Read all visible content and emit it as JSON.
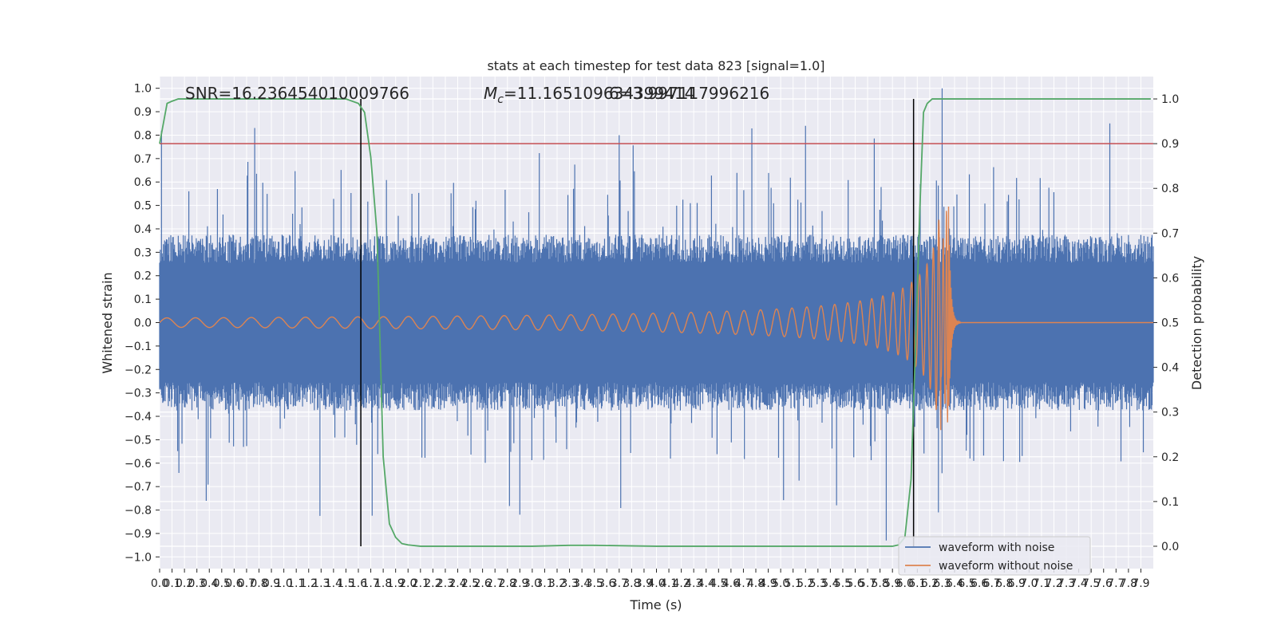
{
  "chart_data": {
    "type": "line",
    "title": "stats at each timestep for test data 823 [signal=1.0]",
    "xlabel": "Time (s)",
    "ylabel_left": "Whitened strain",
    "ylabel_right": "Detection probability",
    "xlim": [
      0.0,
      8.0
    ],
    "ylim_left": [
      -1.05,
      1.05
    ],
    "ylim_right": [
      -0.05,
      1.05
    ],
    "x_ticks": [
      "0.0",
      "0.1",
      "0.2",
      "0.3",
      "0.4",
      "0.5",
      "0.6",
      "0.7",
      "0.8",
      "0.9",
      "1.0",
      "1.1",
      "1.2",
      "1.3",
      "1.4",
      "1.5",
      "1.6",
      "1.7",
      "1.8",
      "1.9",
      "2.0",
      "2.1",
      "2.2",
      "2.3",
      "2.4",
      "2.5",
      "2.6",
      "2.7",
      "2.8",
      "2.9",
      "3.0",
      "3.1",
      "3.2",
      "3.3",
      "3.4",
      "3.5",
      "3.6",
      "3.7",
      "3.8",
      "3.9",
      "4.0",
      "4.1",
      "4.2",
      "4.3",
      "4.4",
      "4.5",
      "4.6",
      "4.7",
      "4.8",
      "4.9",
      "5.0",
      "5.1",
      "5.2",
      "5.3",
      "5.4",
      "5.5",
      "5.6",
      "5.7",
      "5.8",
      "5.9",
      "6.0",
      "6.1",
      "6.2",
      "6.3",
      "6.4",
      "6.5",
      "6.6",
      "6.7",
      "6.8",
      "6.9",
      "7.0",
      "7.1",
      "7.2",
      "7.3",
      "7.4",
      "7.5",
      "7.6",
      "7.7",
      "7.8",
      "7.9"
    ],
    "y_ticks_left": [
      "1.0",
      "0.9",
      "0.8",
      "0.7",
      "0.6",
      "0.5",
      "0.4",
      "0.3",
      "0.2",
      "0.1",
      "0.0",
      "−0.1",
      "−0.2",
      "−0.3",
      "−0.4",
      "−0.5",
      "−0.6",
      "−0.7",
      "−0.8",
      "−0.9",
      "−1.0"
    ],
    "y_ticks_right": [
      "1.0",
      "0.9",
      "0.8",
      "0.7",
      "0.6",
      "0.5",
      "0.4",
      "0.3",
      "0.2",
      "0.1",
      "0.0"
    ],
    "annotations": {
      "snr": "SNR=16.236454010009766",
      "mc_symbol": "M",
      "mc_sub": "c",
      "mc_value": "=11.165109634399414",
      "overlap": "6=3.997117996216"
    },
    "threshold": {
      "value": 0.9,
      "color": "#c44e52"
    },
    "detection_bounds": [
      1.62,
      6.07
    ],
    "series": [
      {
        "name": "waveform with noise",
        "color": "#4c72b0",
        "axis": "left",
        "envelope": {
          "typical": 0.3,
          "peak_max": 1.0,
          "trough_min": -0.93
        }
      },
      {
        "name": "waveform without noise",
        "color": "#dd8452",
        "axis": "left",
        "chirp": {
          "start_amp": 0.02,
          "merger_time": 6.35,
          "peak_amp": 0.55,
          "trough_amp": -0.45,
          "ringdown_end": 6.45
        }
      },
      {
        "name": "",
        "color": "#55a868",
        "axis": "right",
        "x": [
          0.0,
          0.06,
          0.1,
          0.15,
          0.2,
          1.4,
          1.5,
          1.6,
          1.65,
          1.7,
          1.75,
          1.8,
          1.85,
          1.9,
          1.95,
          2.0,
          2.1,
          2.2,
          2.5,
          3.0,
          3.3,
          3.5,
          4.0,
          5.5,
          5.9,
          5.95,
          6.0,
          6.05,
          6.08,
          6.12,
          6.15,
          6.18,
          6.22,
          6.3,
          7.0,
          7.98
        ],
        "y": [
          0.9,
          0.99,
          0.995,
          1.0,
          1.0,
          1.0,
          1.0,
          0.99,
          0.97,
          0.87,
          0.7,
          0.2,
          0.05,
          0.02,
          0.006,
          0.003,
          0.0,
          0.0,
          0.0,
          0.0,
          0.002,
          0.002,
          0.0,
          0.0,
          0.0,
          0.003,
          0.02,
          0.15,
          0.4,
          0.75,
          0.97,
          0.99,
          1.0,
          1.0,
          1.0,
          1.0
        ]
      }
    ],
    "legend": {
      "placement": "lower-right",
      "entries": [
        "waveform with noise",
        "waveform without noise"
      ]
    },
    "grid": true,
    "background": "#eaeaf2"
  }
}
